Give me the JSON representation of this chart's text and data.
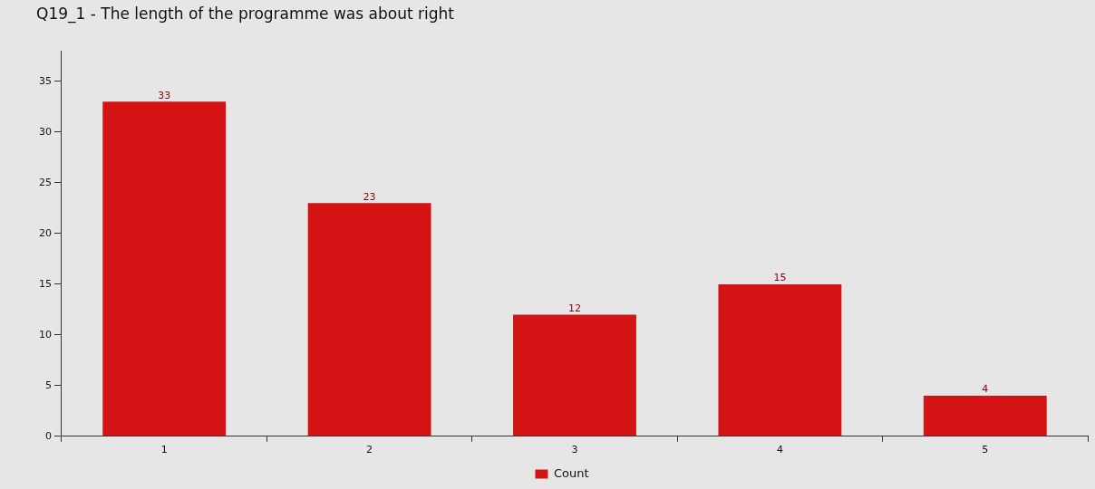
{
  "chart_data": {
    "type": "bar",
    "title": "Q19_1 - The length of the programme was about right",
    "categories": [
      "1",
      "2",
      "3",
      "4",
      "5"
    ],
    "series": [
      {
        "name": "Count",
        "color": "#d41414",
        "values": [
          33,
          23,
          12,
          15,
          4
        ]
      }
    ],
    "ylim": [
      0,
      38
    ],
    "yticks": [
      0,
      5,
      10,
      15,
      20,
      25,
      30,
      35
    ],
    "grid": false,
    "legend": "bottom",
    "data_labels": true
  }
}
